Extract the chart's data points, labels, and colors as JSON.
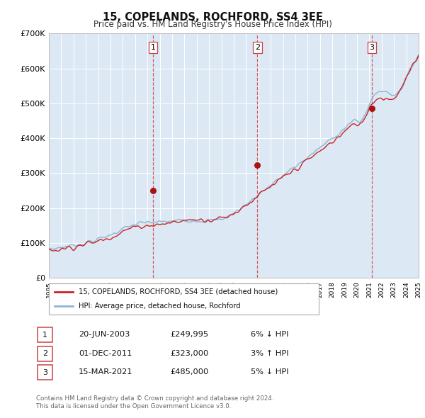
{
  "title": "15, COPELANDS, ROCHFORD, SS4 3EE",
  "subtitle": "Price paid vs. HM Land Registry's House Price Index (HPI)",
  "background_color": "#ffffff",
  "plot_bg_color": "#dce9f5",
  "grid_color": "#ffffff",
  "hpi_color": "#8ab4d4",
  "price_color": "#cc2222",
  "marker_color": "#aa1111",
  "vline_color": "#cc4444",
  "ylim": [
    0,
    700000
  ],
  "yticks": [
    0,
    100000,
    200000,
    300000,
    400000,
    500000,
    600000,
    700000
  ],
  "ytick_labels": [
    "£0",
    "£100K",
    "£200K",
    "£300K",
    "£400K",
    "£500K",
    "£600K",
    "£700K"
  ],
  "year_start": 1995,
  "year_end": 2025,
  "sale_dates": [
    2003.46,
    2011.92,
    2021.2
  ],
  "sale_prices": [
    249995,
    323000,
    485000
  ],
  "sale_labels": [
    "1",
    "2",
    "3"
  ],
  "legend_label_red": "15, COPELANDS, ROCHFORD, SS4 3EE (detached house)",
  "legend_label_blue": "HPI: Average price, detached house, Rochford",
  "table_rows": [
    {
      "num": "1",
      "date": "20-JUN-2003",
      "price": "£249,995",
      "pct": "6%",
      "dir": "↓",
      "label": "HPI"
    },
    {
      "num": "2",
      "date": "01-DEC-2011",
      "price": "£323,000",
      "pct": "3%",
      "dir": "↑",
      "label": "HPI"
    },
    {
      "num": "3",
      "date": "15-MAR-2021",
      "price": "£485,000",
      "pct": "5%",
      "dir": "↓",
      "label": "HPI"
    }
  ],
  "footer": "Contains HM Land Registry data © Crown copyright and database right 2024.\nThis data is licensed under the Open Government Licence v3.0."
}
